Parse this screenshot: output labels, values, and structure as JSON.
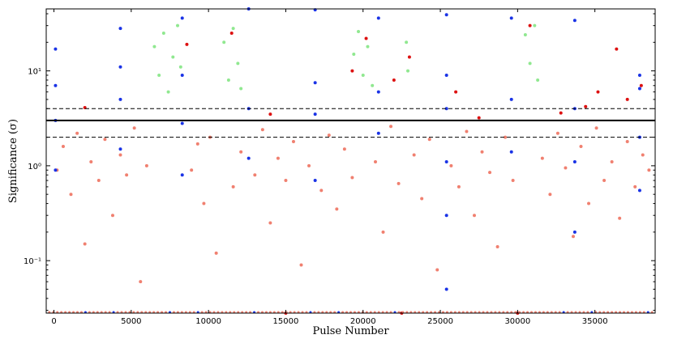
{
  "chart_data": {
    "type": "scatter",
    "xlabel": "Pulse Number",
    "ylabel": "Significance (σ)",
    "xlim": [
      -500,
      38900
    ],
    "ylim": [
      0.028,
      45
    ],
    "yscale": "log",
    "x_ticks": [
      {
        "value": 0,
        "label": "0"
      },
      {
        "value": 5000,
        "label": "5000"
      },
      {
        "value": 10000,
        "label": "10000"
      },
      {
        "value": 15000,
        "label": "15000"
      },
      {
        "value": 20000,
        "label": "20000"
      },
      {
        "value": 25000,
        "label": "25000"
      },
      {
        "value": 30000,
        "label": "30000"
      },
      {
        "value": 35000,
        "label": "35000"
      }
    ],
    "y_ticks": [
      {
        "value": 0.1,
        "label": "10⁻¹"
      },
      {
        "value": 1,
        "label": "10⁰"
      },
      {
        "value": 10,
        "label": "10¹"
      }
    ],
    "threshold_lines": [
      {
        "y": 3,
        "style": "solid"
      },
      {
        "y": 2,
        "style": "dashed"
      },
      {
        "y": 4,
        "style": "dashed"
      }
    ],
    "colors": {
      "below_threshold": "#f08070",
      "above_threshold": "#90e890",
      "highlight_blue": "#1a33e6",
      "highlight_red": "#dd1111"
    },
    "series": [
      {
        "color_key": "below_threshold",
        "description_values": "Bulk of points with significance between ~0.03 and 3",
        "points": [
          [
            200,
            0.9
          ],
          [
            600,
            1.6
          ],
          [
            1100,
            0.5
          ],
          [
            1500,
            2.2
          ],
          [
            2000,
            0.15
          ],
          [
            2400,
            1.1
          ],
          [
            2900,
            0.7
          ],
          [
            3300,
            1.9
          ],
          [
            3800,
            0.3
          ],
          [
            4300,
            1.3
          ],
          [
            4700,
            0.8
          ],
          [
            5200,
            2.5
          ],
          [
            5600,
            0.06
          ],
          [
            6000,
            1.0
          ],
          [
            8900,
            0.9
          ],
          [
            9300,
            1.7
          ],
          [
            9700,
            0.4
          ],
          [
            10100,
            2.0
          ],
          [
            10500,
            0.12
          ],
          [
            11600,
            0.6
          ],
          [
            12100,
            1.4
          ],
          [
            13000,
            0.8
          ],
          [
            13500,
            2.4
          ],
          [
            14000,
            0.25
          ],
          [
            14500,
            1.2
          ],
          [
            15000,
            0.7
          ],
          [
            15500,
            1.8
          ],
          [
            16000,
            0.09
          ],
          [
            16500,
            1.0
          ],
          [
            17300,
            0.55
          ],
          [
            17800,
            2.1
          ],
          [
            18300,
            0.35
          ],
          [
            18800,
            1.5
          ],
          [
            19300,
            0.75
          ],
          [
            20800,
            1.1
          ],
          [
            21300,
            0.2
          ],
          [
            21800,
            2.6
          ],
          [
            22300,
            0.65
          ],
          [
            23300,
            1.3
          ],
          [
            23800,
            0.45
          ],
          [
            24300,
            1.9
          ],
          [
            24800,
            0.08
          ],
          [
            25700,
            1.0
          ],
          [
            26200,
            0.6
          ],
          [
            26700,
            2.3
          ],
          [
            27200,
            0.3
          ],
          [
            27700,
            1.4
          ],
          [
            28200,
            0.85
          ],
          [
            28700,
            0.14
          ],
          [
            29200,
            2.0
          ],
          [
            29700,
            0.7
          ],
          [
            31600,
            1.2
          ],
          [
            32100,
            0.5
          ],
          [
            32600,
            2.2
          ],
          [
            33100,
            0.95
          ],
          [
            33600,
            0.18
          ],
          [
            34100,
            1.6
          ],
          [
            34600,
            0.4
          ],
          [
            35100,
            2.5
          ],
          [
            35600,
            0.7
          ],
          [
            36100,
            1.1
          ],
          [
            36600,
            0.28
          ],
          [
            37100,
            1.8
          ],
          [
            37600,
            0.6
          ],
          [
            38100,
            1.3
          ],
          [
            38500,
            0.9
          ]
        ]
      },
      {
        "color_key": "above_threshold",
        "description_values": "Clusters of high-significance pulses",
        "points": [
          [
            6500,
            18
          ],
          [
            6800,
            9
          ],
          [
            7100,
            25
          ],
          [
            7400,
            6
          ],
          [
            7700,
            14
          ],
          [
            8000,
            30
          ],
          [
            8200,
            11
          ],
          [
            11000,
            20
          ],
          [
            11300,
            8
          ],
          [
            11600,
            28
          ],
          [
            11900,
            12
          ],
          [
            12100,
            6.5
          ],
          [
            19400,
            15
          ],
          [
            19700,
            26
          ],
          [
            20000,
            9
          ],
          [
            20300,
            18
          ],
          [
            20600,
            7
          ],
          [
            22800,
            20
          ],
          [
            22900,
            10
          ],
          [
            30500,
            24
          ],
          [
            30800,
            12
          ],
          [
            31100,
            30
          ],
          [
            31300,
            8
          ]
        ]
      },
      {
        "color_key": "highlight_blue",
        "description_values": "Vertical streaks of flagged pulses",
        "points": [
          [
            100,
            0.9
          ],
          [
            100,
            3
          ],
          [
            100,
            7
          ],
          [
            100,
            17
          ],
          [
            4300,
            1.5
          ],
          [
            4300,
            5
          ],
          [
            4300,
            11
          ],
          [
            4300,
            28
          ],
          [
            8300,
            0.8
          ],
          [
            8300,
            2.8
          ],
          [
            8300,
            9
          ],
          [
            8300,
            36
          ],
          [
            12600,
            1.2
          ],
          [
            12600,
            4
          ],
          [
            12600,
            45
          ],
          [
            16900,
            0.7
          ],
          [
            16900,
            3.5
          ],
          [
            16900,
            7.5
          ],
          [
            16900,
            44
          ],
          [
            21000,
            2.2
          ],
          [
            21000,
            6
          ],
          [
            21000,
            36
          ],
          [
            25400,
            0.05
          ],
          [
            25400,
            0.3
          ],
          [
            25400,
            1.1
          ],
          [
            25400,
            4
          ],
          [
            25400,
            9
          ],
          [
            25400,
            39
          ],
          [
            29600,
            1.4
          ],
          [
            29600,
            5
          ],
          [
            29600,
            36
          ],
          [
            33700,
            0.2
          ],
          [
            33700,
            1.1
          ],
          [
            33700,
            4
          ],
          [
            33700,
            34
          ],
          [
            37900,
            0.55
          ],
          [
            37900,
            2
          ],
          [
            37900,
            6.5
          ],
          [
            37900,
            9
          ]
        ]
      },
      {
        "color_key": "highlight_red",
        "description_values": "Sparse red points",
        "points": [
          [
            2000,
            4.1
          ],
          [
            8600,
            19
          ],
          [
            11500,
            25
          ],
          [
            14000,
            3.5
          ],
          [
            19300,
            10
          ],
          [
            20200,
            22
          ],
          [
            22000,
            8
          ],
          [
            23000,
            14
          ],
          [
            26000,
            6
          ],
          [
            27500,
            3.2
          ],
          [
            30800,
            30
          ],
          [
            32800,
            3.6
          ],
          [
            34400,
            4.2
          ],
          [
            35200,
            6
          ],
          [
            36400,
            17
          ],
          [
            37100,
            5
          ],
          [
            38000,
            7
          ],
          [
            15000,
            0.028
          ],
          [
            22500,
            0.028
          ],
          [
            30000,
            0.028
          ]
        ]
      }
    ],
    "floor_strip": {
      "y": 0.028,
      "colors": [
        "#f08070",
        "#1a33e6",
        "#dd1111"
      ]
    }
  }
}
